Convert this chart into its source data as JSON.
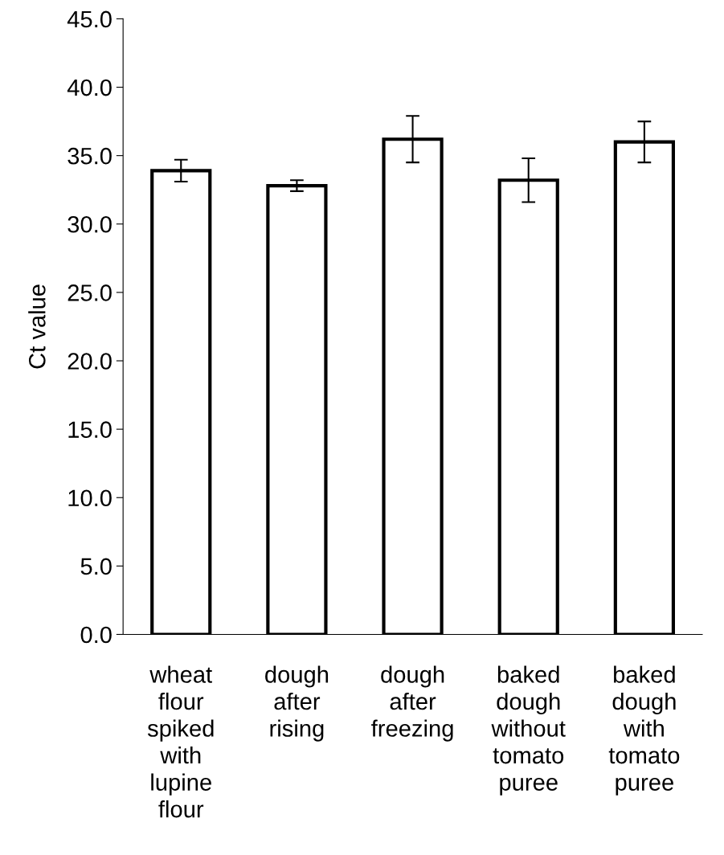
{
  "chart_data": {
    "type": "bar",
    "ylabel": "Ct value",
    "categories": [
      "wheat\nflour\nspiked\nwith\nlupine\nflour",
      "dough\nafter\nrising",
      "dough\nafter\nfreezing",
      "baked\ndough\nwithout\ntomato\npuree",
      "baked\ndough\nwith\ntomato\npuree"
    ],
    "values": [
      33.9,
      32.8,
      36.2,
      33.2,
      36.0
    ],
    "errors": [
      0.8,
      0.4,
      1.7,
      1.6,
      1.5
    ],
    "color": "#ffffff",
    "ylim": [
      0,
      45
    ],
    "yticks": [
      {
        "value": 0,
        "label": "0.0"
      },
      {
        "value": 5,
        "label": "5.0"
      },
      {
        "value": 10,
        "label": "10.0"
      },
      {
        "value": 15,
        "label": "15.0"
      },
      {
        "value": 20,
        "label": "20.0"
      },
      {
        "value": 25,
        "label": "25.0"
      },
      {
        "value": 30,
        "label": "30.0"
      },
      {
        "value": 35,
        "label": "35.0"
      },
      {
        "value": 40,
        "label": "40.0"
      },
      {
        "value": 45,
        "label": "45.0"
      }
    ],
    "grid": false
  }
}
